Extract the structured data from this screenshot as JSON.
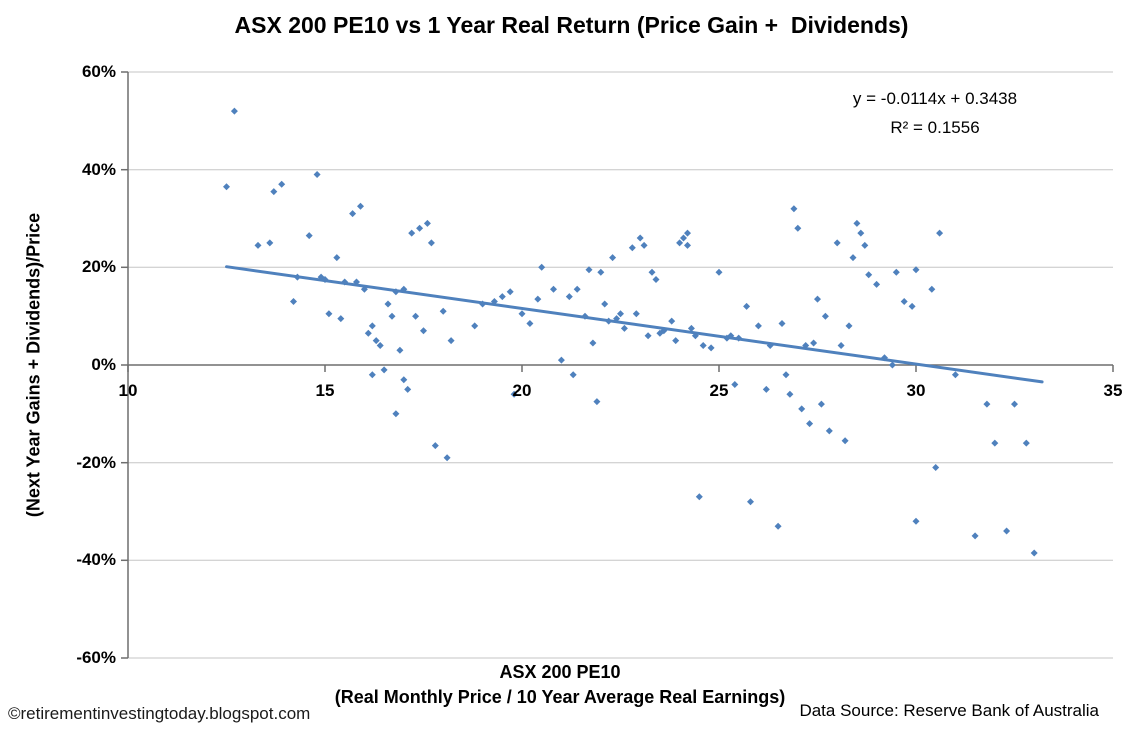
{
  "chart_data": {
    "type": "scatter",
    "title": "ASX 200 PE10 vs 1 Year Real Return (Price Gain +  Dividends)",
    "x_axis": {
      "label_line1": "ASX 200 PE10",
      "label_line2": "(Real Monthly Price / 10 Year Average Real Earnings)",
      "range": [
        10,
        35
      ],
      "ticks": [
        {
          "v": 10,
          "label": "10"
        },
        {
          "v": 15,
          "label": "15"
        },
        {
          "v": 20,
          "label": "20"
        },
        {
          "v": 25,
          "label": "25"
        },
        {
          "v": 30,
          "label": "30"
        },
        {
          "v": 35,
          "label": "35"
        }
      ]
    },
    "y_axis": {
      "label": "(Next Year Gains + Dividends)/Price",
      "range": [
        -0.6,
        0.6
      ],
      "ticks": [
        {
          "v": 0.6,
          "label": "60%"
        },
        {
          "v": 0.4,
          "label": "40%"
        },
        {
          "v": 0.2,
          "label": "20%"
        },
        {
          "v": 0.0,
          "label": "0%"
        },
        {
          "v": -0.2,
          "label": "-20%"
        },
        {
          "v": -0.4,
          "label": "-40%"
        },
        {
          "v": -0.6,
          "label": "-60%"
        }
      ]
    },
    "annotation": {
      "equation": "y = -0.0114x + 0.3438",
      "r_squared": "R² = 0.1556"
    },
    "trendline": {
      "slope": -0.0114,
      "intercept": 0.3438,
      "x_start": 12.5,
      "x_end": 33.2,
      "color": "#4F81BD",
      "width": 3
    },
    "marker": {
      "shape": "diamond",
      "color": "#4F81BD",
      "size": 7
    },
    "grid": {
      "show": true,
      "color": "#C6C6C6"
    },
    "axis_color": "#6e6e6e",
    "points": [
      [
        12.7,
        0.52
      ],
      [
        12.5,
        0.365
      ],
      [
        13.3,
        0.245
      ],
      [
        13.6,
        0.25
      ],
      [
        13.9,
        0.37
      ],
      [
        13.7,
        0.355
      ],
      [
        14.2,
        0.13
      ],
      [
        14.3,
        0.18
      ],
      [
        14.6,
        0.265
      ],
      [
        14.8,
        0.39
      ],
      [
        14.9,
        0.18
      ],
      [
        15.0,
        0.175
      ],
      [
        15.1,
        0.105
      ],
      [
        15.3,
        0.22
      ],
      [
        15.4,
        0.095
      ],
      [
        15.5,
        0.17
      ],
      [
        15.7,
        0.31
      ],
      [
        15.9,
        0.325
      ],
      [
        15.8,
        0.17
      ],
      [
        16.0,
        0.155
      ],
      [
        16.1,
        0.065
      ],
      [
        16.2,
        0.08
      ],
      [
        16.2,
        -0.02
      ],
      [
        16.3,
        0.05
      ],
      [
        16.4,
        0.04
      ],
      [
        16.5,
        -0.01
      ],
      [
        16.6,
        0.125
      ],
      [
        16.7,
        0.1
      ],
      [
        16.8,
        0.15
      ],
      [
        16.8,
        -0.1
      ],
      [
        16.9,
        0.03
      ],
      [
        17.0,
        0.155
      ],
      [
        17.0,
        -0.03
      ],
      [
        17.1,
        -0.05
      ],
      [
        17.2,
        0.27
      ],
      [
        17.3,
        0.1
      ],
      [
        17.4,
        0.28
      ],
      [
        17.5,
        0.07
      ],
      [
        17.6,
        0.29
      ],
      [
        17.7,
        0.25
      ],
      [
        17.8,
        -0.165
      ],
      [
        18.0,
        0.11
      ],
      [
        18.1,
        -0.19
      ],
      [
        18.2,
        0.05
      ],
      [
        18.8,
        0.08
      ],
      [
        19.0,
        0.125
      ],
      [
        19.3,
        0.13
      ],
      [
        19.5,
        0.14
      ],
      [
        19.7,
        0.15
      ],
      [
        19.8,
        -0.06
      ],
      [
        20.0,
        0.105
      ],
      [
        20.2,
        0.085
      ],
      [
        20.4,
        0.135
      ],
      [
        20.5,
        0.2
      ],
      [
        20.8,
        0.155
      ],
      [
        21.0,
        0.01
      ],
      [
        21.2,
        0.14
      ],
      [
        21.3,
        -0.02
      ],
      [
        21.4,
        0.155
      ],
      [
        21.6,
        0.1
      ],
      [
        21.7,
        0.195
      ],
      [
        21.8,
        0.045
      ],
      [
        21.9,
        -0.075
      ],
      [
        22.0,
        0.19
      ],
      [
        22.1,
        0.125
      ],
      [
        22.2,
        0.09
      ],
      [
        22.3,
        0.22
      ],
      [
        22.4,
        0.095
      ],
      [
        22.5,
        0.105
      ],
      [
        22.6,
        0.075
      ],
      [
        22.8,
        0.24
      ],
      [
        22.9,
        0.105
      ],
      [
        23.0,
        0.26
      ],
      [
        23.1,
        0.245
      ],
      [
        23.2,
        0.06
      ],
      [
        23.3,
        0.19
      ],
      [
        23.4,
        0.175
      ],
      [
        23.5,
        0.065
      ],
      [
        23.6,
        0.07
      ],
      [
        23.8,
        0.09
      ],
      [
        23.9,
        0.05
      ],
      [
        24.0,
        0.25
      ],
      [
        24.1,
        0.26
      ],
      [
        24.2,
        0.27
      ],
      [
        24.2,
        0.245
      ],
      [
        24.3,
        0.075
      ],
      [
        24.4,
        0.06
      ],
      [
        24.5,
        -0.27
      ],
      [
        24.6,
        0.04
      ],
      [
        24.8,
        0.035
      ],
      [
        25.0,
        0.19
      ],
      [
        25.2,
        0.055
      ],
      [
        25.3,
        0.06
      ],
      [
        25.4,
        -0.04
      ],
      [
        25.5,
        0.055
      ],
      [
        25.7,
        0.12
      ],
      [
        25.8,
        -0.28
      ],
      [
        26.0,
        0.08
      ],
      [
        26.2,
        -0.05
      ],
      [
        26.3,
        0.04
      ],
      [
        26.5,
        -0.33
      ],
      [
        26.6,
        0.085
      ],
      [
        26.7,
        -0.02
      ],
      [
        26.8,
        -0.06
      ],
      [
        26.9,
        0.32
      ],
      [
        27.0,
        0.28
      ],
      [
        27.1,
        -0.09
      ],
      [
        27.2,
        0.04
      ],
      [
        27.3,
        -0.12
      ],
      [
        27.4,
        0.045
      ],
      [
        27.5,
        0.135
      ],
      [
        27.6,
        -0.08
      ],
      [
        27.7,
        0.1
      ],
      [
        27.8,
        -0.135
      ],
      [
        28.0,
        0.25
      ],
      [
        28.1,
        0.04
      ],
      [
        28.2,
        -0.155
      ],
      [
        28.3,
        0.08
      ],
      [
        28.4,
        0.22
      ],
      [
        28.5,
        0.29
      ],
      [
        28.6,
        0.27
      ],
      [
        28.7,
        0.245
      ],
      [
        28.8,
        0.185
      ],
      [
        29.0,
        0.165
      ],
      [
        29.2,
        0.015
      ],
      [
        29.4,
        0.0
      ],
      [
        29.5,
        0.19
      ],
      [
        29.7,
        0.13
      ],
      [
        29.9,
        0.12
      ],
      [
        30.0,
        0.195
      ],
      [
        30.0,
        -0.32
      ],
      [
        30.4,
        0.155
      ],
      [
        30.6,
        0.27
      ],
      [
        30.5,
        -0.21
      ],
      [
        31.0,
        -0.02
      ],
      [
        31.5,
        -0.35
      ],
      [
        31.8,
        -0.08
      ],
      [
        32.0,
        -0.16
      ],
      [
        32.3,
        -0.34
      ],
      [
        32.5,
        -0.08
      ],
      [
        32.8,
        -0.16
      ],
      [
        33.0,
        -0.385
      ]
    ]
  },
  "footer": {
    "copyright": "©retirementinvestingtoday.blogspot.com",
    "data_source": "Data Source: Reserve Bank of Australia"
  }
}
